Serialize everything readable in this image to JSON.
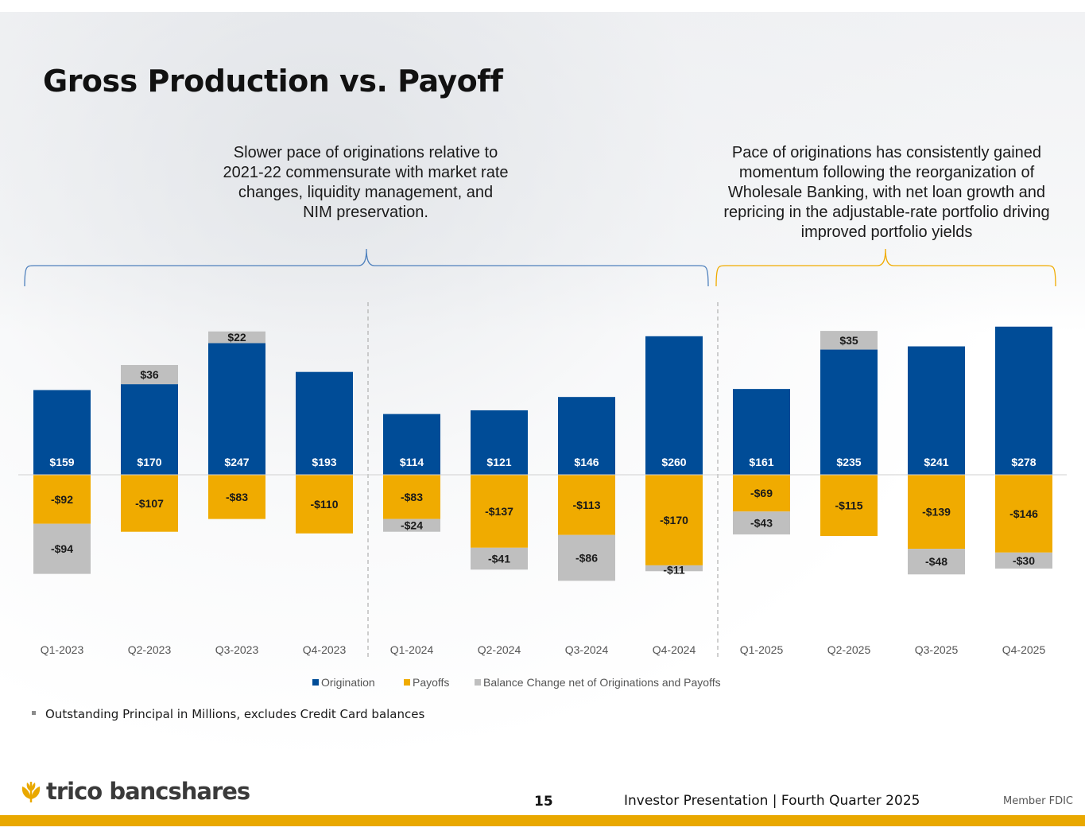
{
  "slide": {
    "title": "Gross Production vs. Payoff",
    "note_left": "Slower pace of originations relative to 2021-22 commensurate with market rate changes, liquidity management, and NIM preservation.",
    "note_right": "Pace of originations has consistently gained momentum following the reorganization of Wholesale Banking, with net loan growth and repricing in the adjustable-rate portfolio driving improved portfolio yields",
    "footnote": "Outstanding Principal in Millions, excludes Credit Card balances",
    "page_number": "15",
    "footer": "Investor Presentation  |  Fourth Quarter 2025",
    "logo_text": "trico bancshares",
    "member": "Member FDIC"
  },
  "colors": {
    "origination": "#004c97",
    "payoffs": "#f0ab00",
    "balance": "#bfbfbf",
    "bracket_left": "#4f81bd",
    "bracket_right": "#f0ab00",
    "footer_bar": "#e9a800"
  },
  "chart_data": {
    "type": "bar",
    "stacked": true,
    "title": "",
    "xlabel": "",
    "ylabel": "",
    "categories": [
      "Q1-2023",
      "Q2-2023",
      "Q3-2023",
      "Q4-2023",
      "Q1-2024",
      "Q2-2024",
      "Q3-2024",
      "Q4-2024",
      "Q1-2025",
      "Q2-2025",
      "Q3-2025",
      "Q4-2025"
    ],
    "series": [
      {
        "name": "Origination",
        "values": [
          159,
          170,
          247,
          193,
          114,
          121,
          146,
          260,
          161,
          235,
          241,
          278
        ],
        "labels": [
          "$159",
          "$170",
          "$247",
          "$193",
          "$114",
          "$121",
          "$146",
          "$260",
          "$161",
          "$235",
          "$241",
          "$278"
        ]
      },
      {
        "name": "Payoffs",
        "values": [
          -92,
          -107,
          -83,
          -110,
          -83,
          -137,
          -113,
          -170,
          -69,
          -115,
          -139,
          -146
        ],
        "labels": [
          "-$92",
          "-$107",
          "-$83",
          "-$110",
          "-$83",
          "-$137",
          "-$113",
          "-$170",
          "-$69",
          "-$115",
          "-$139",
          "-$146"
        ]
      },
      {
        "name": "Balance Change net of Originations and Payoffs",
        "values": [
          -94,
          36,
          22,
          null,
          -24,
          -41,
          -86,
          -11,
          -43,
          35,
          -48,
          -30
        ],
        "labels": [
          "-$94",
          "$36",
          "$22",
          "",
          "-$24",
          "-$41",
          "-$86",
          "-$11",
          "-$43",
          "$35",
          "-$48",
          "-$30"
        ]
      }
    ],
    "ylim": [
      -200,
      280
    ],
    "legend": "bottom-center",
    "grid": false,
    "separators_after": [
      "Q4-2023",
      "Q4-2024"
    ]
  }
}
